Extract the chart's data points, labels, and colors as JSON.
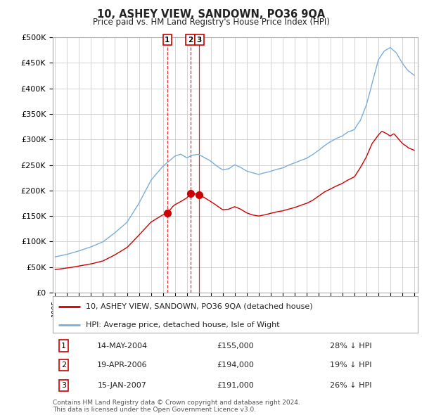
{
  "title": "10, ASHEY VIEW, SANDOWN, PO36 9QA",
  "subtitle": "Price paid vs. HM Land Registry's House Price Index (HPI)",
  "ylabel_ticks": [
    "£0",
    "£50K",
    "£100K",
    "£150K",
    "£200K",
    "£250K",
    "£300K",
    "£350K",
    "£400K",
    "£450K",
    "£500K"
  ],
  "ytick_vals": [
    0,
    50000,
    100000,
    150000,
    200000,
    250000,
    300000,
    350000,
    400000,
    450000,
    500000
  ],
  "ylim": [
    0,
    500000
  ],
  "legend_line1": "10, ASHEY VIEW, SANDOWN, PO36 9QA (detached house)",
  "legend_line2": "HPI: Average price, detached house, Isle of Wight",
  "transactions": [
    {
      "id": 1,
      "date": "14-MAY-2004",
      "price": 155000,
      "pct": "28%",
      "x": 2004.37
    },
    {
      "id": 2,
      "date": "19-APR-2006",
      "price": 194000,
      "pct": "19%",
      "x": 2006.3
    },
    {
      "id": 3,
      "date": "15-JAN-2007",
      "price": 191000,
      "pct": "26%",
      "x": 2007.04
    }
  ],
  "footnote1": "Contains HM Land Registry data © Crown copyright and database right 2024.",
  "footnote2": "This data is licensed under the Open Government Licence v3.0.",
  "line_color_red": "#cc0000",
  "line_color_blue": "#7aaddc",
  "background_color": "#ffffff",
  "grid_color": "#cccccc",
  "marker_color_red": "#cc0000",
  "vline_color": "#cc0000",
  "vline_solid_color": "#cc0000"
}
